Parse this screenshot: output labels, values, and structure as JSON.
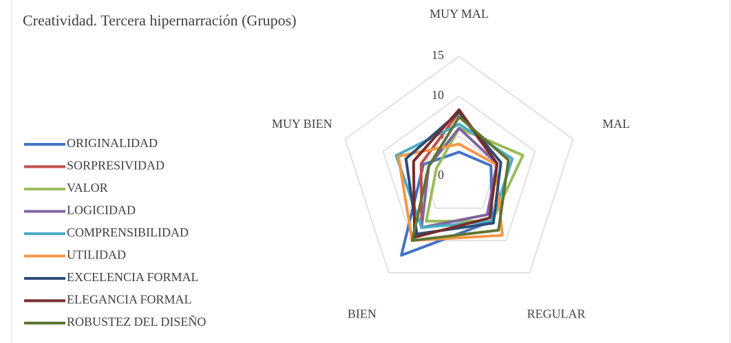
{
  "chart_data": {
    "type": "radar",
    "title": "Creatividad. Tercera hipernarración (Grupos)",
    "categories": [
      "MUY MAL",
      "MAL",
      "REGULAR",
      "BIEN",
      "MUY BIEN"
    ],
    "ylim": [
      0,
      15
    ],
    "yticks": [
      0,
      5,
      10,
      15
    ],
    "grid": true,
    "legend": "left",
    "series": [
      {
        "name": "ORIGINALIDAD",
        "color": "#4472c4",
        "values": [
          3,
          4.2,
          7,
          12.3,
          4.7
        ]
      },
      {
        "name": "SORPRESIVIDAD",
        "color": "#c0504d",
        "values": [
          8,
          5,
          6,
          8,
          5
        ]
      },
      {
        "name": "VALOR",
        "color": "#9bbb59",
        "values": [
          6,
          8.4,
          7,
          7,
          3
        ]
      },
      {
        "name": "LOGICIDAD",
        "color": "#8064a2",
        "values": [
          6,
          5,
          6,
          8,
          4
        ]
      },
      {
        "name": "COMPRENSIBILIDAD",
        "color": "#4bacc6",
        "values": [
          6.5,
          7,
          7,
          8,
          8.3
        ]
      },
      {
        "name": "UTILIDAD",
        "color": "#f79646",
        "values": [
          4,
          4.8,
          9.2,
          10,
          8
        ]
      },
      {
        "name": "EXCELENCIA FORMAL",
        "color": "#2c4d75",
        "values": [
          8,
          5.5,
          7.3,
          9,
          7
        ]
      },
      {
        "name": "ELEGANCIA FORMAL",
        "color": "#772c2a",
        "values": [
          8.3,
          5,
          6.5,
          9.5,
          6
        ]
      },
      {
        "name": "ROBUSTEZ DEL DISEÑO",
        "color": "#5f7530",
        "values": [
          7.4,
          6.5,
          8.4,
          10,
          4
        ]
      }
    ]
  }
}
